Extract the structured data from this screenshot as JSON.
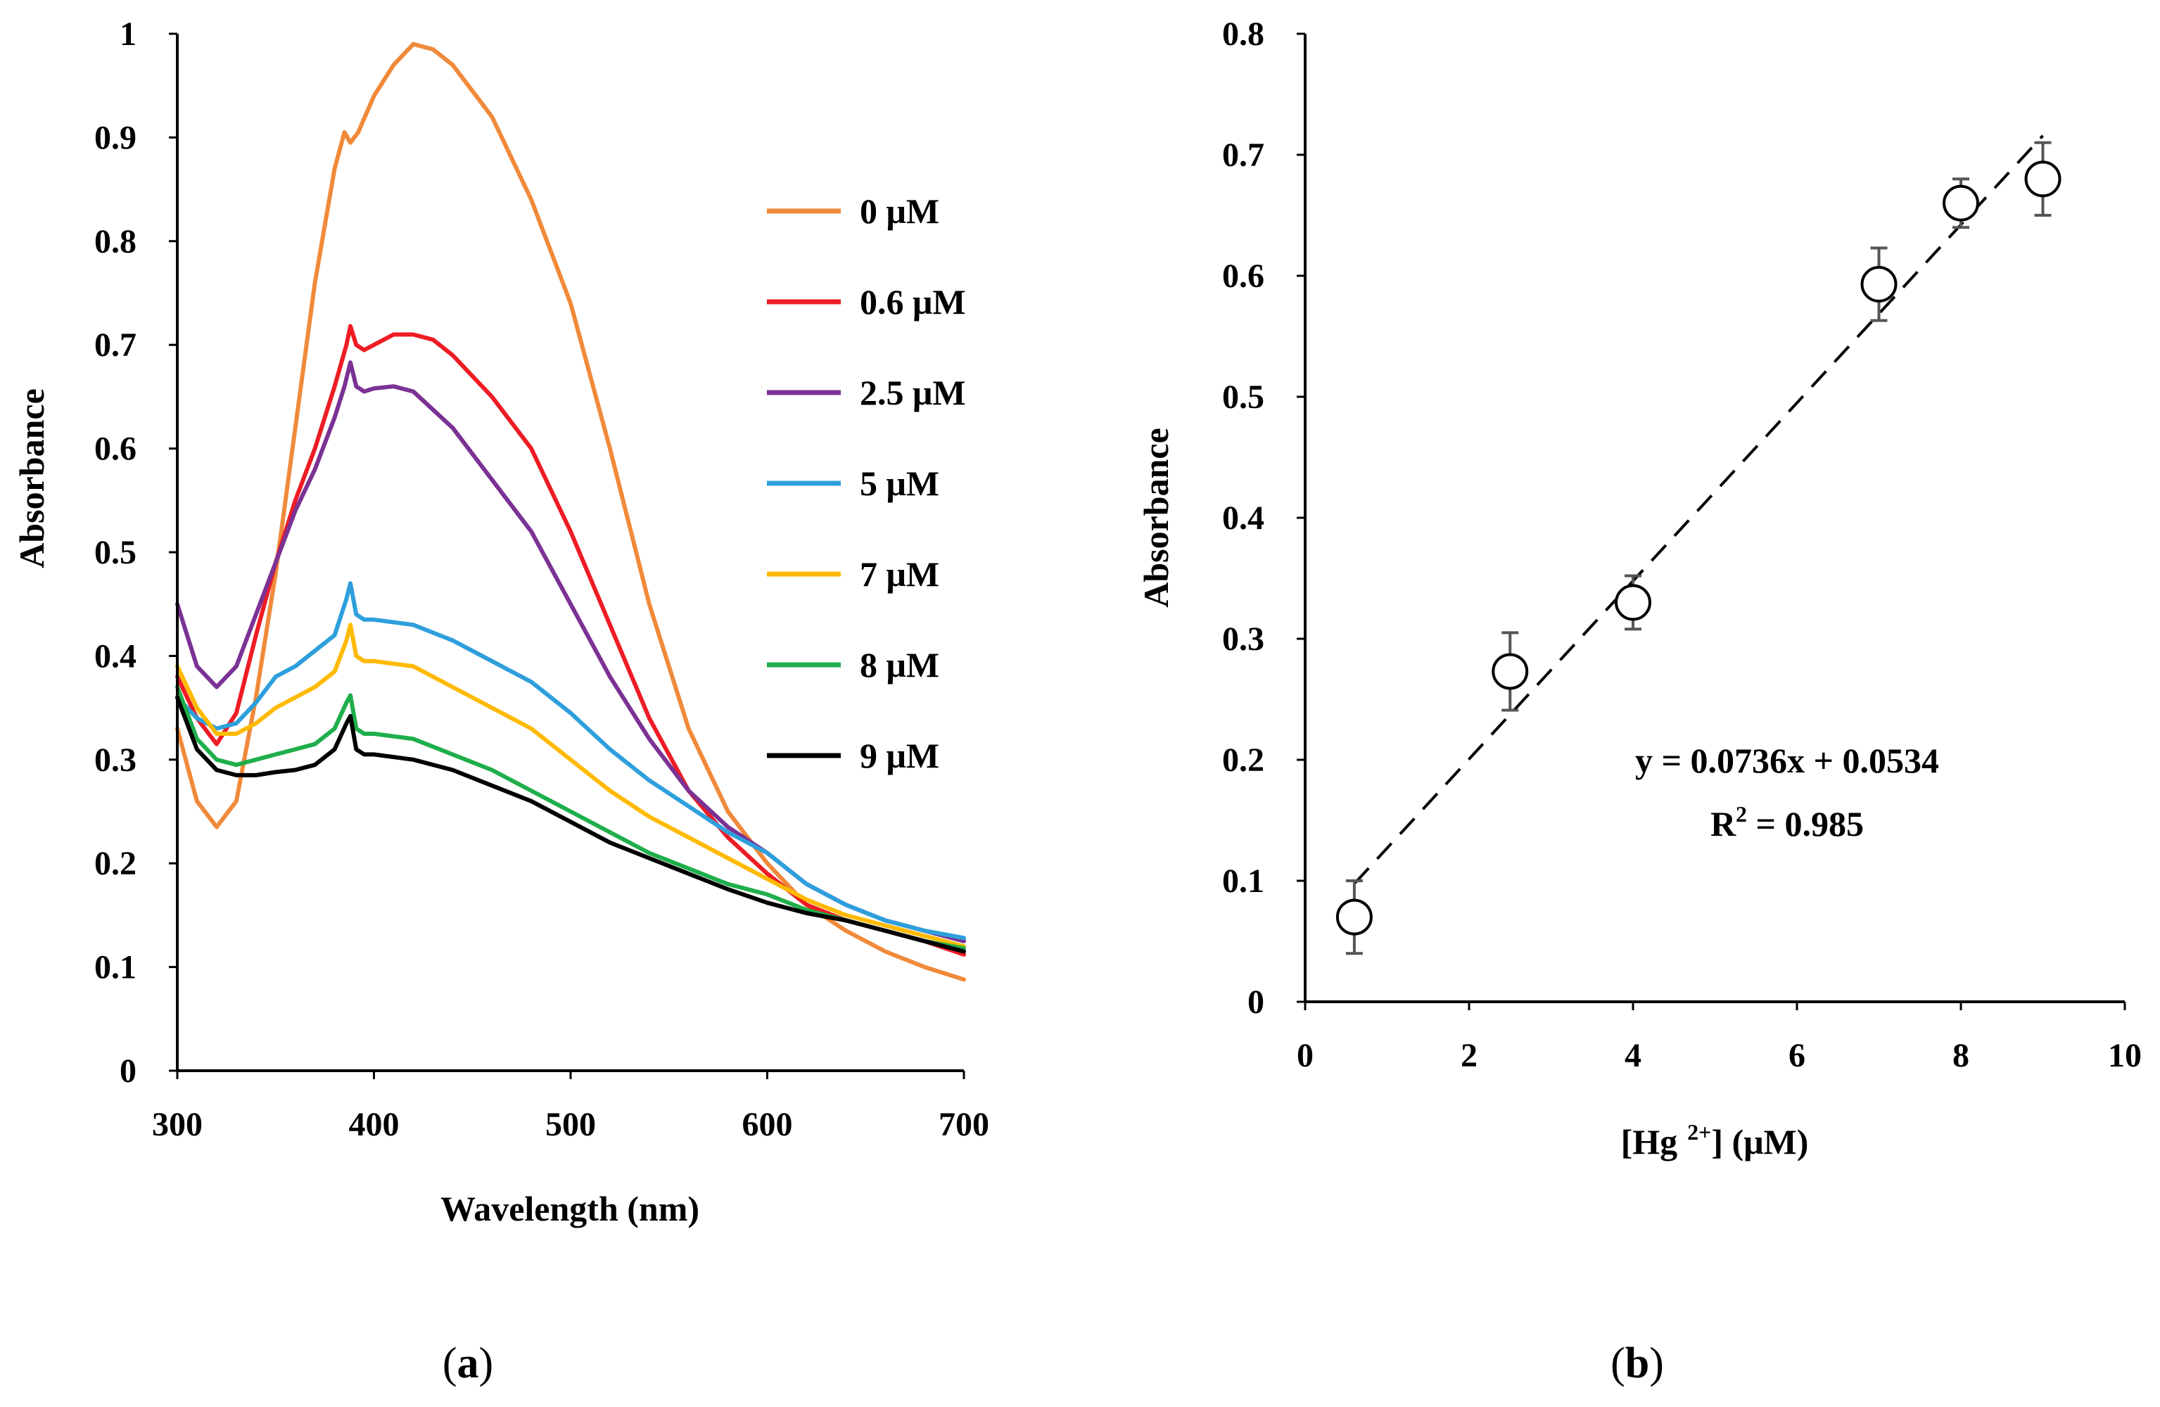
{
  "chart_data": [
    {
      "type": "line",
      "xlabel": "Wavelength (nm)",
      "ylabel": "Absorbance",
      "xlim": [
        300,
        700
      ],
      "ylim": [
        0,
        1
      ],
      "xticks": [
        300,
        400,
        500,
        600,
        700
      ],
      "yticks": [
        0,
        0.1,
        0.2,
        0.3,
        0.4,
        0.5,
        0.6,
        0.7,
        0.8,
        0.9,
        1
      ],
      "ytick_labels": [
        "0",
        "0.1",
        "0.2",
        "0.3",
        "0.4",
        "0.5",
        "0.6",
        "0.7",
        "0.8",
        "0.9",
        "1"
      ],
      "grid": false,
      "legend_position": "right",
      "panel_label": "a",
      "series": [
        {
          "name": "0 μM",
          "color": "#f08a3a",
          "points": [
            [
              300,
              0.33
            ],
            [
              310,
              0.26
            ],
            [
              320,
              0.235
            ],
            [
              330,
              0.26
            ],
            [
              340,
              0.36
            ],
            [
              350,
              0.48
            ],
            [
              360,
              0.62
            ],
            [
              370,
              0.76
            ],
            [
              380,
              0.87
            ],
            [
              385,
              0.905
            ],
            [
              388,
              0.895
            ],
            [
              392,
              0.905
            ],
            [
              400,
              0.94
            ],
            [
              410,
              0.97
            ],
            [
              420,
              0.99
            ],
            [
              430,
              0.985
            ],
            [
              440,
              0.97
            ],
            [
              460,
              0.92
            ],
            [
              480,
              0.84
            ],
            [
              500,
              0.74
            ],
            [
              520,
              0.6
            ],
            [
              540,
              0.45
            ],
            [
              560,
              0.33
            ],
            [
              580,
              0.25
            ],
            [
              600,
              0.2
            ],
            [
              620,
              0.16
            ],
            [
              640,
              0.135
            ],
            [
              660,
              0.115
            ],
            [
              680,
              0.1
            ],
            [
              700,
              0.088
            ]
          ]
        },
        {
          "name": "0.6 μM",
          "color": "#ee1c24",
          "points": [
            [
              300,
              0.38
            ],
            [
              310,
              0.34
            ],
            [
              320,
              0.315
            ],
            [
              330,
              0.345
            ],
            [
              340,
              0.42
            ],
            [
              350,
              0.49
            ],
            [
              360,
              0.55
            ],
            [
              370,
              0.6
            ],
            [
              380,
              0.66
            ],
            [
              386,
              0.7
            ],
            [
              388,
              0.718
            ],
            [
              391,
              0.7
            ],
            [
              395,
              0.695
            ],
            [
              400,
              0.7
            ],
            [
              410,
              0.71
            ],
            [
              420,
              0.71
            ],
            [
              430,
              0.705
            ],
            [
              440,
              0.69
            ],
            [
              460,
              0.65
            ],
            [
              480,
              0.6
            ],
            [
              500,
              0.52
            ],
            [
              520,
              0.43
            ],
            [
              540,
              0.34
            ],
            [
              560,
              0.27
            ],
            [
              580,
              0.225
            ],
            [
              600,
              0.19
            ],
            [
              620,
              0.16
            ],
            [
              640,
              0.145
            ],
            [
              660,
              0.135
            ],
            [
              680,
              0.125
            ],
            [
              700,
              0.112
            ]
          ]
        },
        {
          "name": "2.5 μM",
          "color": "#7b3294",
          "points": [
            [
              300,
              0.45
            ],
            [
              310,
              0.39
            ],
            [
              320,
              0.37
            ],
            [
              330,
              0.39
            ],
            [
              340,
              0.44
            ],
            [
              350,
              0.49
            ],
            [
              360,
              0.54
            ],
            [
              370,
              0.58
            ],
            [
              380,
              0.63
            ],
            [
              385,
              0.66
            ],
            [
              388,
              0.683
            ],
            [
              391,
              0.66
            ],
            [
              395,
              0.655
            ],
            [
              400,
              0.658
            ],
            [
              410,
              0.66
            ],
            [
              420,
              0.655
            ],
            [
              440,
              0.62
            ],
            [
              460,
              0.57
            ],
            [
              480,
              0.52
            ],
            [
              500,
              0.45
            ],
            [
              520,
              0.38
            ],
            [
              540,
              0.32
            ],
            [
              560,
              0.27
            ],
            [
              580,
              0.235
            ],
            [
              600,
              0.21
            ],
            [
              620,
              0.18
            ],
            [
              640,
              0.16
            ],
            [
              660,
              0.145
            ],
            [
              680,
              0.135
            ],
            [
              700,
              0.125
            ]
          ]
        },
        {
          "name": "5 μM",
          "color": "#2e9fdc",
          "points": [
            [
              300,
              0.36
            ],
            [
              310,
              0.34
            ],
            [
              320,
              0.33
            ],
            [
              330,
              0.335
            ],
            [
              340,
              0.355
            ],
            [
              350,
              0.38
            ],
            [
              360,
              0.39
            ],
            [
              370,
              0.405
            ],
            [
              380,
              0.42
            ],
            [
              386,
              0.455
            ],
            [
              388,
              0.47
            ],
            [
              391,
              0.44
            ],
            [
              395,
              0.435
            ],
            [
              400,
              0.435
            ],
            [
              420,
              0.43
            ],
            [
              440,
              0.415
            ],
            [
              460,
              0.395
            ],
            [
              480,
              0.375
            ],
            [
              500,
              0.345
            ],
            [
              520,
              0.31
            ],
            [
              540,
              0.28
            ],
            [
              560,
              0.255
            ],
            [
              580,
              0.23
            ],
            [
              600,
              0.21
            ],
            [
              620,
              0.18
            ],
            [
              640,
              0.16
            ],
            [
              660,
              0.145
            ],
            [
              680,
              0.135
            ],
            [
              700,
              0.128
            ]
          ]
        },
        {
          "name": "7 μM",
          "color": "#ffba00",
          "points": [
            [
              300,
              0.39
            ],
            [
              310,
              0.35
            ],
            [
              320,
              0.325
            ],
            [
              330,
              0.325
            ],
            [
              340,
              0.335
            ],
            [
              350,
              0.35
            ],
            [
              360,
              0.36
            ],
            [
              370,
              0.37
            ],
            [
              380,
              0.385
            ],
            [
              386,
              0.415
            ],
            [
              388,
              0.43
            ],
            [
              391,
              0.4
            ],
            [
              395,
              0.395
            ],
            [
              400,
              0.395
            ],
            [
              420,
              0.39
            ],
            [
              440,
              0.37
            ],
            [
              460,
              0.35
            ],
            [
              480,
              0.33
            ],
            [
              500,
              0.3
            ],
            [
              520,
              0.27
            ],
            [
              540,
              0.245
            ],
            [
              560,
              0.225
            ],
            [
              580,
              0.205
            ],
            [
              600,
              0.185
            ],
            [
              620,
              0.165
            ],
            [
              640,
              0.15
            ],
            [
              660,
              0.14
            ],
            [
              680,
              0.13
            ],
            [
              700,
              0.12
            ]
          ]
        },
        {
          "name": "8 μM",
          "color": "#1fae4b",
          "points": [
            [
              300,
              0.37
            ],
            [
              310,
              0.32
            ],
            [
              320,
              0.3
            ],
            [
              330,
              0.295
            ],
            [
              340,
              0.3
            ],
            [
              350,
              0.305
            ],
            [
              360,
              0.31
            ],
            [
              370,
              0.315
            ],
            [
              380,
              0.33
            ],
            [
              386,
              0.355
            ],
            [
              388,
              0.362
            ],
            [
              391,
              0.33
            ],
            [
              395,
              0.325
            ],
            [
              400,
              0.325
            ],
            [
              420,
              0.32
            ],
            [
              440,
              0.305
            ],
            [
              460,
              0.29
            ],
            [
              480,
              0.27
            ],
            [
              500,
              0.25
            ],
            [
              520,
              0.23
            ],
            [
              540,
              0.21
            ],
            [
              560,
              0.195
            ],
            [
              580,
              0.18
            ],
            [
              600,
              0.17
            ],
            [
              620,
              0.155
            ],
            [
              640,
              0.145
            ],
            [
              660,
              0.135
            ],
            [
              680,
              0.125
            ],
            [
              700,
              0.118
            ]
          ]
        },
        {
          "name": "9 μM",
          "color": "#000000",
          "points": [
            [
              300,
              0.36
            ],
            [
              310,
              0.31
            ],
            [
              320,
              0.29
            ],
            [
              330,
              0.285
            ],
            [
              340,
              0.285
            ],
            [
              350,
              0.288
            ],
            [
              360,
              0.29
            ],
            [
              370,
              0.295
            ],
            [
              380,
              0.31
            ],
            [
              386,
              0.335
            ],
            [
              388,
              0.342
            ],
            [
              391,
              0.31
            ],
            [
              395,
              0.305
            ],
            [
              400,
              0.305
            ],
            [
              420,
              0.3
            ],
            [
              440,
              0.29
            ],
            [
              460,
              0.275
            ],
            [
              480,
              0.26
            ],
            [
              500,
              0.24
            ],
            [
              520,
              0.22
            ],
            [
              540,
              0.205
            ],
            [
              560,
              0.19
            ],
            [
              580,
              0.175
            ],
            [
              600,
              0.162
            ],
            [
              620,
              0.152
            ],
            [
              640,
              0.145
            ],
            [
              660,
              0.135
            ],
            [
              680,
              0.125
            ],
            [
              700,
              0.115
            ]
          ]
        }
      ]
    },
    {
      "type": "scatter",
      "xlabel_main": "[Hg",
      "xlabel_sup": "2+",
      "xlabel_tail": "] (μM)",
      "ylabel": "Absorbance",
      "xlim": [
        0,
        10
      ],
      "ylim": [
        0,
        0.8
      ],
      "xticks": [
        0,
        2,
        4,
        6,
        8,
        10
      ],
      "yticks": [
        0,
        0.1,
        0.2,
        0.3,
        0.4,
        0.5,
        0.6,
        0.7,
        0.8
      ],
      "ytick_labels": [
        "0",
        "0.1",
        "0.2",
        "0.3",
        "0.4",
        "0.5",
        "0.6",
        "0.7",
        "0.8"
      ],
      "grid": false,
      "panel_label": "b",
      "points": [
        {
          "x": 0.6,
          "y": 0.07,
          "err": 0.03
        },
        {
          "x": 2.5,
          "y": 0.273,
          "err": 0.032
        },
        {
          "x": 4.0,
          "y": 0.33,
          "err": 0.022
        },
        {
          "x": 7.0,
          "y": 0.593,
          "err": 0.03
        },
        {
          "x": 8.0,
          "y": 0.66,
          "err": 0.02
        },
        {
          "x": 9.0,
          "y": 0.68,
          "err": 0.03
        }
      ],
      "fit": {
        "slope": 0.0736,
        "intercept": 0.0534,
        "x_range": [
          0.6,
          9.0
        ],
        "equation": "y = 0.0736x + 0.0534",
        "r2_main": "R",
        "r2_sup": "2",
        "r2_tail": " = 0.985"
      }
    }
  ]
}
